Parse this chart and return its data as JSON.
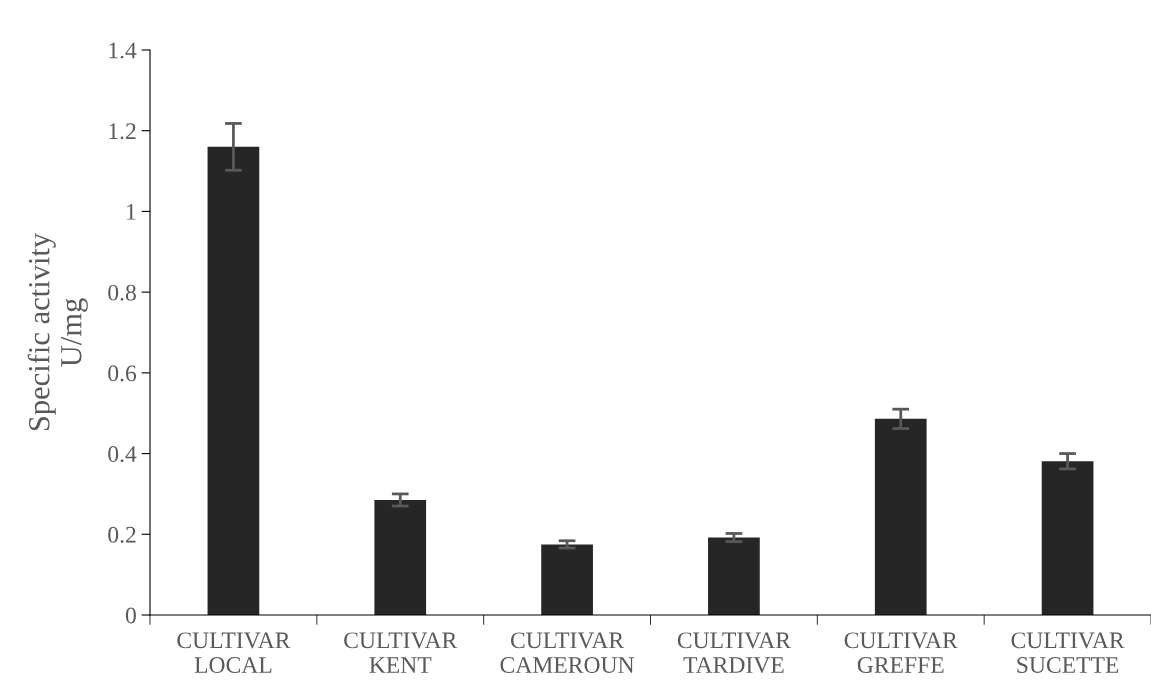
{
  "chart_data": {
    "type": "bar",
    "ylabel": "Specific activity\nU/mg",
    "categories": [
      "CULTIVAR\nLOCAL",
      "CULTIVAR\nKENT",
      "CULTIVAR\nCAMEROUN",
      "CULTIVAR\nTARDIVE",
      "CULTIVAR\nGREFFE",
      "CULTIVAR\nSUCETTE"
    ],
    "values": [
      1.16,
      0.285,
      0.175,
      0.192,
      0.486,
      0.381
    ],
    "errors": [
      0.058,
      0.015,
      0.009,
      0.01,
      0.024,
      0.019
    ],
    "color": "#262626",
    "ylim": [
      0,
      1.4
    ],
    "yticks": [
      0,
      0.2,
      0.4,
      0.6,
      0.8,
      1,
      1.2,
      1.4
    ],
    "grid": false
  }
}
